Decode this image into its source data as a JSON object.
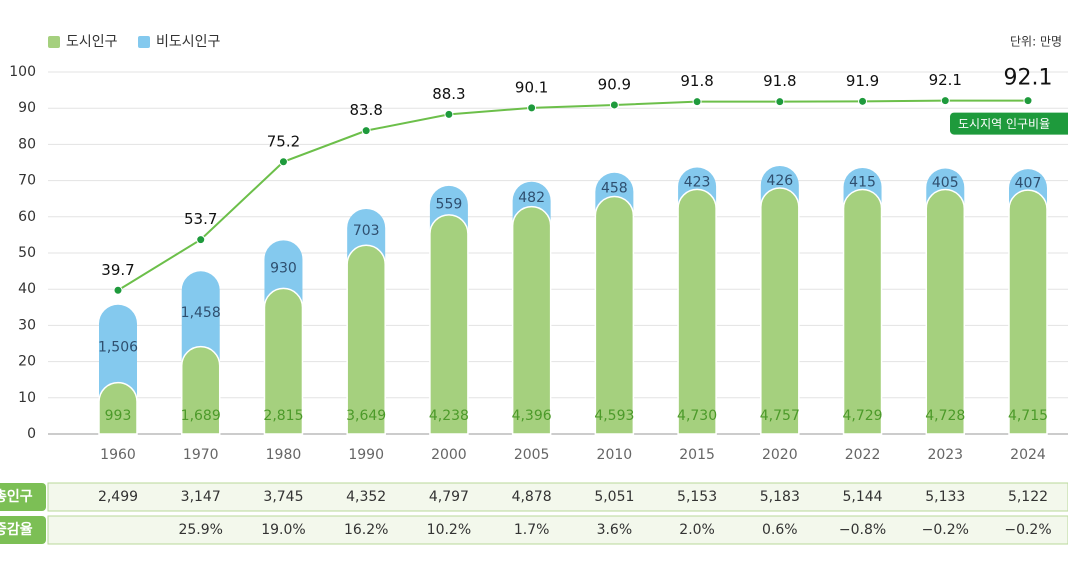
{
  "chart_data": {
    "type": "bar",
    "unit": "단위: 만명",
    "categories": [
      "1960",
      "1970",
      "1980",
      "1990",
      "2000",
      "2005",
      "2010",
      "2015",
      "2020",
      "2022",
      "2023",
      "2024"
    ],
    "ylim": [
      0,
      100
    ],
    "yticks": [
      0,
      10,
      20,
      30,
      40,
      50,
      60,
      70,
      80,
      90,
      100
    ],
    "y2lim": [
      0,
      7000
    ],
    "grid": true,
    "legend": "top-left",
    "series": [
      {
        "name": "도시인구",
        "color": "#a5d07e",
        "axis": "y2",
        "values": [
          993,
          1689,
          2815,
          3649,
          4238,
          4396,
          4593,
          4730,
          4757,
          4729,
          4728,
          4715
        ],
        "value_labels": [
          "993",
          "1,689",
          "2,815",
          "3,649",
          "4,238",
          "4,396",
          "4,593",
          "4,730",
          "4,757",
          "4,729",
          "4,728",
          "4,715"
        ]
      },
      {
        "name": "비도시인구",
        "color": "#84c9ee",
        "axis": "y2",
        "values": [
          1506,
          1458,
          930,
          703,
          559,
          482,
          458,
          423,
          426,
          415,
          405,
          407
        ],
        "value_labels": [
          "1,506",
          "1,458",
          "930",
          "703",
          "559",
          "482",
          "458",
          "423",
          "426",
          "415",
          "405",
          "407"
        ]
      },
      {
        "name": "도시지역 인구비율",
        "type": "line",
        "color": "#6cbf4a",
        "values": [
          39.7,
          53.7,
          75.2,
          83.8,
          88.3,
          90.1,
          90.9,
          91.8,
          91.8,
          91.9,
          92.1,
          92.1
        ]
      }
    ]
  },
  "table": {
    "rows": [
      [
        "총인구",
        "2,499",
        "3,147",
        "3,745",
        "4,352",
        "4,797",
        "4,878",
        "5,051",
        "5,153",
        "5,183",
        "5,144",
        "5,133",
        "5,122"
      ],
      [
        "증감율",
        "",
        "25.9%",
        "19.0%",
        "16.2%",
        "10.2%",
        "1.7%",
        "3.6%",
        "2.0%",
        "0.6%",
        "−0.8%",
        "−0.2%",
        "−0.2%"
      ]
    ]
  }
}
